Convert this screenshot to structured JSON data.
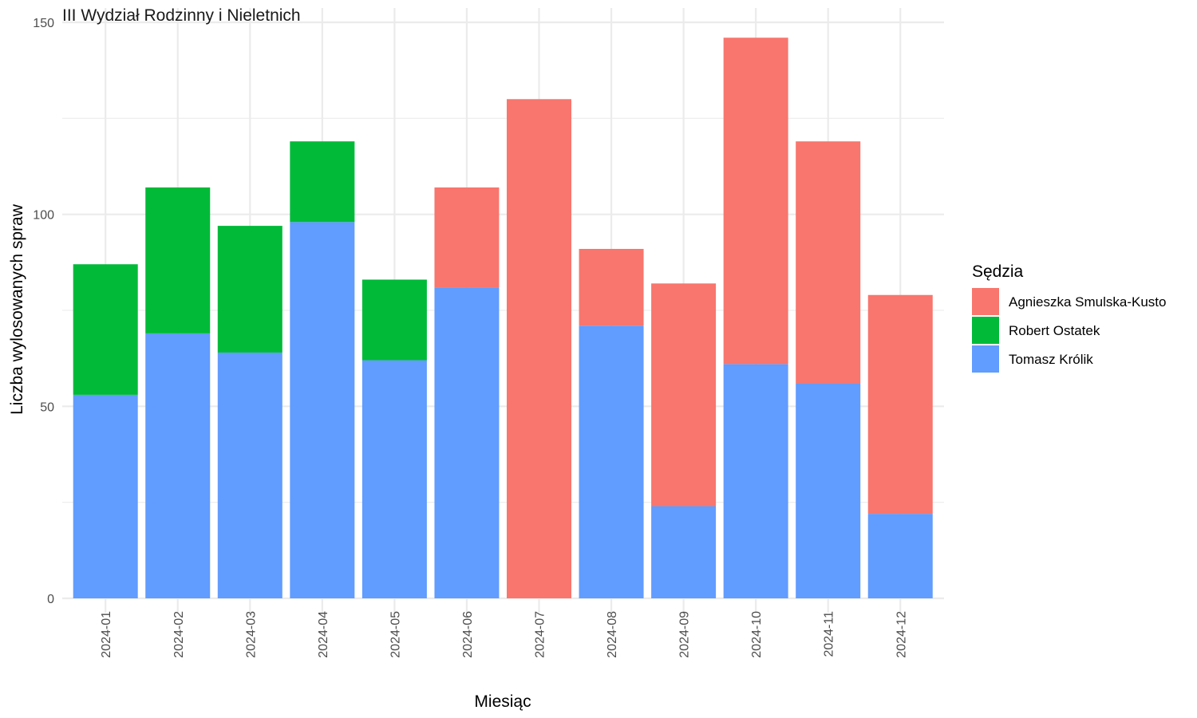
{
  "chart_data": {
    "type": "bar",
    "stacked": true,
    "title": "III Wydział Rodzinny i Nieletnich",
    "xlabel": "Miesiąc",
    "ylabel": "Liczba wylosowanych spraw",
    "ylim": [
      0,
      150
    ],
    "yticks": [
      "0",
      "50",
      "100",
      "150"
    ],
    "grid": true,
    "legend": {
      "title": "Sędzia",
      "position": "right"
    },
    "categories": [
      "2024-01",
      "2024-02",
      "2024-03",
      "2024-04",
      "2024-05",
      "2024-06",
      "2024-07",
      "2024-08",
      "2024-09",
      "2024-10",
      "2024-11",
      "2024-12"
    ],
    "series": [
      {
        "name": "Tomasz Królik",
        "color": "#619CFF",
        "values": [
          53,
          69,
          64,
          98,
          62,
          81,
          0,
          71,
          24,
          61,
          56,
          22
        ]
      },
      {
        "name": "Robert Ostatek",
        "color": "#00BA38",
        "values": [
          34,
          38,
          33,
          21,
          21,
          0,
          0,
          0,
          0,
          0,
          0,
          0
        ]
      },
      {
        "name": "Agnieszka Smulska-Kusto",
        "color": "#F8766D",
        "values": [
          0,
          0,
          0,
          0,
          0,
          26,
          130,
          20,
          58,
          85,
          63,
          57
        ]
      }
    ],
    "legend_order": [
      "Agnieszka Smulska-Kusto",
      "Robert Ostatek",
      "Tomasz Królik"
    ]
  }
}
